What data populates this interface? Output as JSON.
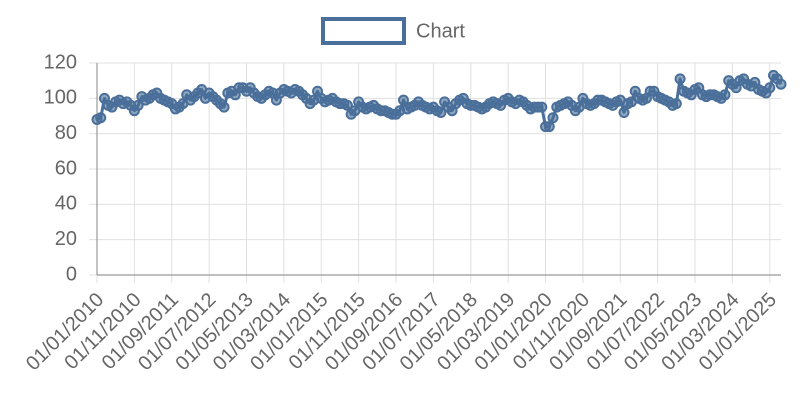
{
  "chart_data": {
    "type": "line",
    "categories": [
      "01/01/2010",
      null,
      null,
      null,
      null,
      null,
      null,
      null,
      null,
      null,
      "01/11/2010",
      null,
      null,
      null,
      null,
      null,
      null,
      null,
      null,
      null,
      "01/09/2011",
      null,
      null,
      null,
      null,
      null,
      null,
      null,
      null,
      null,
      "01/07/2012",
      null,
      null,
      null,
      null,
      null,
      null,
      null,
      null,
      null,
      "01/05/2013",
      null,
      null,
      null,
      null,
      null,
      null,
      null,
      null,
      null,
      "01/03/2014",
      null,
      null,
      null,
      null,
      null,
      null,
      null,
      null,
      null,
      "01/01/2015",
      null,
      null,
      null,
      null,
      null,
      null,
      null,
      null,
      null,
      "01/11/2015",
      null,
      null,
      null,
      null,
      null,
      null,
      null,
      null,
      null,
      "01/09/2016",
      null,
      null,
      null,
      null,
      null,
      null,
      null,
      null,
      null,
      "01/07/2017",
      null,
      null,
      null,
      null,
      null,
      null,
      null,
      null,
      null,
      "01/05/2018",
      null,
      null,
      null,
      null,
      null,
      null,
      null,
      null,
      null,
      "01/03/2019",
      null,
      null,
      null,
      null,
      null,
      null,
      null,
      null,
      null,
      "01/01/2020",
      null,
      null,
      null,
      null,
      null,
      null,
      null,
      null,
      null,
      "01/11/2020",
      null,
      null,
      null,
      null,
      null,
      null,
      null,
      null,
      null,
      "01/09/2021",
      null,
      null,
      null,
      null,
      null,
      null,
      null,
      null,
      null,
      "01/07/2022",
      null,
      null,
      null,
      null,
      null,
      null,
      null,
      null,
      null,
      "01/05/2023",
      null,
      null,
      null,
      null,
      null,
      null,
      null,
      null,
      null,
      "01/03/2024",
      null,
      null,
      null,
      null,
      null,
      null,
      null,
      null,
      null,
      "01/01/2025",
      null,
      null,
      null
    ],
    "series": [
      {
        "name": "Chart",
        "color": "#4a6f9a",
        "values": [
          88,
          89,
          100,
          96,
          95,
          98,
          99,
          97,
          98,
          96,
          93,
          96,
          101,
          99,
          100,
          102,
          103,
          100,
          99,
          98,
          97,
          94,
          95,
          97,
          102,
          99,
          101,
          103,
          105,
          100,
          103,
          101,
          99,
          97,
          95,
          103,
          104,
          102,
          106,
          106,
          104,
          106,
          103,
          101,
          100,
          102,
          104,
          103,
          99,
          103,
          105,
          104,
          103,
          105,
          104,
          102,
          100,
          97,
          99,
          104,
          100,
          98,
          99,
          100,
          98,
          97,
          97,
          96,
          91,
          93,
          98,
          95,
          94,
          95,
          96,
          94,
          93,
          93,
          92,
          91,
          91,
          93,
          99,
          94,
          95,
          96,
          98,
          96,
          95,
          94,
          95,
          93,
          92,
          98,
          95,
          93,
          97,
          99,
          100,
          97,
          96,
          96,
          95,
          94,
          95,
          97,
          98,
          97,
          96,
          99,
          100,
          98,
          97,
          99,
          98,
          96,
          94,
          95,
          95,
          95,
          84,
          84,
          89,
          95,
          96,
          97,
          98,
          96,
          93,
          95,
          100,
          97,
          96,
          97,
          99,
          99,
          98,
          97,
          96,
          98,
          99,
          92,
          97,
          98,
          104,
          100,
          99,
          100,
          104,
          104,
          101,
          100,
          99,
          98,
          96,
          97,
          111,
          104,
          103,
          102,
          105,
          106,
          102,
          101,
          102,
          102,
          101,
          100,
          102,
          110,
          108,
          106,
          110,
          111,
          108,
          107,
          109,
          105,
          104,
          103,
          106,
          113,
          111,
          108
        ]
      }
    ],
    "ylim": [
      0,
      120
    ],
    "yticks": [
      0,
      20,
      40,
      60,
      80,
      100,
      120
    ],
    "grid": true
  }
}
